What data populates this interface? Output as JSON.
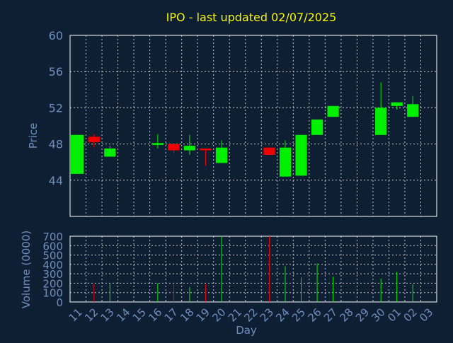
{
  "colors": {
    "background": "#0f1f33",
    "title": "#f7f700",
    "axis_text": "#6f8fbf",
    "frame": "#ffffff",
    "grid": "#c8c8c8",
    "up": "#00f000",
    "down": "#f00000"
  },
  "chart_data": [
    {
      "type": "candlestick",
      "title": "IPO - last updated 02/07/2025",
      "ylabel": "Price",
      "xlabel": "",
      "ylim": [
        40,
        60
      ],
      "yticks": [
        44,
        48,
        52,
        56,
        60
      ],
      "grid": true,
      "categories": [
        "11",
        "12",
        "13",
        "14",
        "15",
        "16",
        "17",
        "18",
        "19",
        "20",
        "21",
        "22",
        "23",
        "24",
        "25",
        "26",
        "27",
        "28",
        "29",
        "30",
        "01",
        "02",
        "03"
      ],
      "candles": [
        {
          "x": "11",
          "open": 44.7,
          "close": 49.0,
          "high": 49.0,
          "low": 44.7
        },
        {
          "x": "12",
          "open": 48.8,
          "close": 48.2,
          "high": 49.1,
          "low": 47.6
        },
        {
          "x": "13",
          "open": 46.6,
          "close": 47.5,
          "high": 47.8,
          "low": 46.6
        },
        {
          "x": "16",
          "open": 47.9,
          "close": 48.1,
          "high": 49.1,
          "low": 47.5
        },
        {
          "x": "17",
          "open": 48.0,
          "close": 47.3,
          "high": 48.0,
          "low": 47.0
        },
        {
          "x": "18",
          "open": 47.3,
          "close": 47.8,
          "high": 49.0,
          "low": 46.8
        },
        {
          "x": "19",
          "open": 47.5,
          "close": 47.3,
          "high": 47.5,
          "low": 45.6
        },
        {
          "x": "20",
          "open": 45.9,
          "close": 47.6,
          "high": 48.4,
          "low": 45.9
        },
        {
          "x": "23",
          "open": 47.6,
          "close": 46.8,
          "high": 47.6,
          "low": 46.8
        },
        {
          "x": "24",
          "open": 44.4,
          "close": 47.6,
          "high": 48.4,
          "low": 44.4
        },
        {
          "x": "25",
          "open": 44.5,
          "close": 49.0,
          "high": 49.0,
          "low": 44.5
        },
        {
          "x": "26",
          "open": 49.0,
          "close": 50.7,
          "high": 50.7,
          "low": 49.0
        },
        {
          "x": "27",
          "open": 51.0,
          "close": 52.2,
          "high": 52.2,
          "low": 51.0
        },
        {
          "x": "30",
          "open": 49.0,
          "close": 52.0,
          "high": 54.8,
          "low": 49.0
        },
        {
          "x": "01",
          "open": 52.2,
          "close": 52.6,
          "high": 52.6,
          "low": 51.8
        },
        {
          "x": "02",
          "open": 51.0,
          "close": 52.4,
          "high": 53.3,
          "low": 51.0
        }
      ]
    },
    {
      "type": "bar",
      "title": "",
      "xlabel": "Day",
      "ylabel": "Volume (0000)",
      "ylim": [
        0,
        700
      ],
      "yticks": [
        0,
        100,
        200,
        300,
        400,
        500,
        600,
        700
      ],
      "grid": true,
      "categories": [
        "11",
        "12",
        "13",
        "14",
        "15",
        "16",
        "17",
        "18",
        "19",
        "20",
        "21",
        "22",
        "23",
        "24",
        "25",
        "26",
        "27",
        "28",
        "29",
        "30",
        "01",
        "02",
        "03"
      ],
      "values": [
        {
          "x": "12",
          "v": 190,
          "dir": "down"
        },
        {
          "x": "13",
          "v": 200,
          "dir": "up"
        },
        {
          "x": "16",
          "v": 200,
          "dir": "up"
        },
        {
          "x": "17",
          "v": 190,
          "dir": "down"
        },
        {
          "x": "18",
          "v": 160,
          "dir": "up"
        },
        {
          "x": "19",
          "v": 190,
          "dir": "down"
        },
        {
          "x": "20",
          "v": 700,
          "dir": "up"
        },
        {
          "x": "23",
          "v": 700,
          "dir": "down"
        },
        {
          "x": "24",
          "v": 380,
          "dir": "up"
        },
        {
          "x": "25",
          "v": 260,
          "dir": "up"
        },
        {
          "x": "26",
          "v": 410,
          "dir": "up"
        },
        {
          "x": "27",
          "v": 270,
          "dir": "up"
        },
        {
          "x": "30",
          "v": 250,
          "dir": "up"
        },
        {
          "x": "01",
          "v": 320,
          "dir": "up"
        },
        {
          "x": "02",
          "v": 190,
          "dir": "up"
        }
      ]
    }
  ]
}
